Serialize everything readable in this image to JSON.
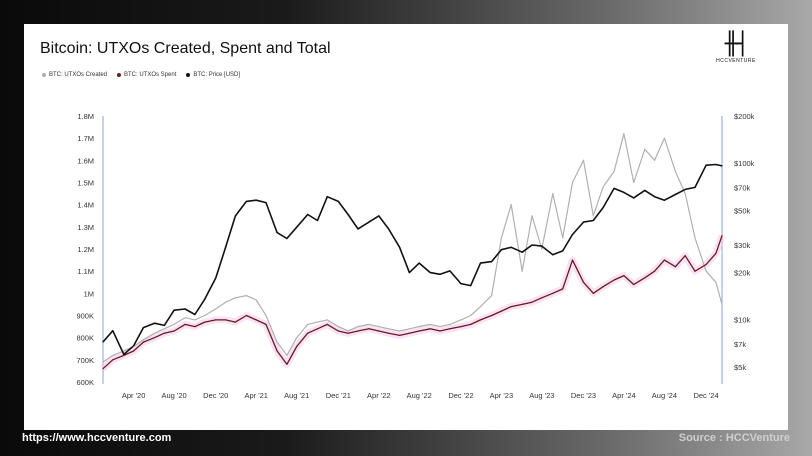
{
  "footer": {
    "url": "https://www.hccventure.com",
    "source": "Source : HCCVenture"
  },
  "logo": {
    "text": "HCCVENTURE"
  },
  "chart_data": {
    "type": "line",
    "title": "Bitcoin: UTXOs Created, Spent and Total",
    "legend_position": "top-left",
    "grid": false,
    "x_ticks": [
      "Apr '20",
      "Aug '20",
      "Dec '20",
      "Apr '21",
      "Aug '21",
      "Dec '21",
      "Apr '22",
      "Aug '22",
      "Dec '22",
      "Apr '23",
      "Aug '23",
      "Dec '23",
      "Apr '24",
      "Aug '24",
      "Dec '24"
    ],
    "y_left_ticks": [
      "1.8M",
      "1.7M",
      "1.6M",
      "1.5M",
      "1.4M",
      "1.3M",
      "1.2M",
      "1.1M",
      "1M",
      "900K",
      "800K",
      "700K",
      "600K"
    ],
    "y_left_range": [
      600000,
      1800000
    ],
    "y_right_ticks": [
      "$200k",
      "$100k",
      "$70k",
      "$50k",
      "$30k",
      "$20k",
      "$10k",
      "$7k",
      "$5k"
    ],
    "y_right_scale": "log",
    "y_right_range": [
      4000,
      200000
    ],
    "x": [
      2020.0,
      2020.08,
      2020.17,
      2020.25,
      2020.33,
      2020.42,
      2020.5,
      2020.58,
      2020.67,
      2020.75,
      2020.83,
      2020.92,
      2021.0,
      2021.08,
      2021.17,
      2021.25,
      2021.33,
      2021.42,
      2021.5,
      2021.58,
      2021.67,
      2021.75,
      2021.83,
      2021.92,
      2022.0,
      2022.08,
      2022.17,
      2022.25,
      2022.33,
      2022.42,
      2022.5,
      2022.58,
      2022.67,
      2022.75,
      2022.83,
      2022.92,
      2023.0,
      2023.08,
      2023.17,
      2023.25,
      2023.33,
      2023.42,
      2023.5,
      2023.58,
      2023.67,
      2023.75,
      2023.83,
      2023.92,
      2024.0,
      2024.08,
      2024.17,
      2024.25,
      2024.33,
      2024.42,
      2024.5,
      2024.58,
      2024.67,
      2024.75,
      2024.83,
      2024.92,
      2025.0,
      2025.05
    ],
    "series": [
      {
        "name": "BTC: UTXOs Created",
        "color": "#b0b0b0",
        "values": [
          690000,
          720000,
          740000,
          760000,
          790000,
          820000,
          840000,
          860000,
          890000,
          880000,
          900000,
          930000,
          960000,
          980000,
          990000,
          970000,
          900000,
          780000,
          720000,
          800000,
          860000,
          870000,
          880000,
          850000,
          830000,
          850000,
          860000,
          850000,
          840000,
          830000,
          840000,
          850000,
          860000,
          850000,
          860000,
          880000,
          900000,
          940000,
          990000,
          1250000,
          1400000,
          1100000,
          1350000,
          1200000,
          1450000,
          1250000,
          1500000,
          1600000,
          1350000,
          1480000,
          1550000,
          1720000,
          1500000,
          1650000,
          1600000,
          1700000,
          1550000,
          1450000,
          1250000,
          1100000,
          1050000,
          950000
        ]
      },
      {
        "name": "BTC: UTXOs Spent",
        "color": "#6a1a1a",
        "values": [
          660000,
          700000,
          720000,
          740000,
          780000,
          800000,
          820000,
          830000,
          860000,
          850000,
          870000,
          880000,
          880000,
          870000,
          900000,
          880000,
          860000,
          740000,
          680000,
          760000,
          820000,
          840000,
          860000,
          830000,
          820000,
          830000,
          840000,
          830000,
          820000,
          810000,
          820000,
          830000,
          840000,
          830000,
          840000,
          850000,
          860000,
          880000,
          900000,
          920000,
          940000,
          950000,
          960000,
          980000,
          1000000,
          1020000,
          1150000,
          1050000,
          1000000,
          1030000,
          1060000,
          1080000,
          1040000,
          1070000,
          1100000,
          1150000,
          1120000,
          1170000,
          1100000,
          1130000,
          1180000,
          1260000
        ]
      },
      {
        "name": "BTC: Price [USD]",
        "color": "#111111",
        "values": [
          7200,
          8500,
          6000,
          6800,
          8900,
          9500,
          9200,
          11500,
          11700,
          10800,
          13500,
          18500,
          29000,
          46000,
          57000,
          58000,
          56000,
          36000,
          33000,
          39000,
          47000,
          43000,
          61000,
          57000,
          47000,
          38000,
          42000,
          46000,
          38000,
          29000,
          20000,
          23000,
          20000,
          19500,
          20500,
          17000,
          16500,
          23000,
          23500,
          28000,
          29000,
          27000,
          30000,
          29500,
          26000,
          27500,
          35000,
          42000,
          43000,
          52000,
          69000,
          65000,
          60000,
          67000,
          61000,
          58000,
          63000,
          68000,
          70000,
          97000,
          98000,
          96000
        ]
      }
    ]
  }
}
